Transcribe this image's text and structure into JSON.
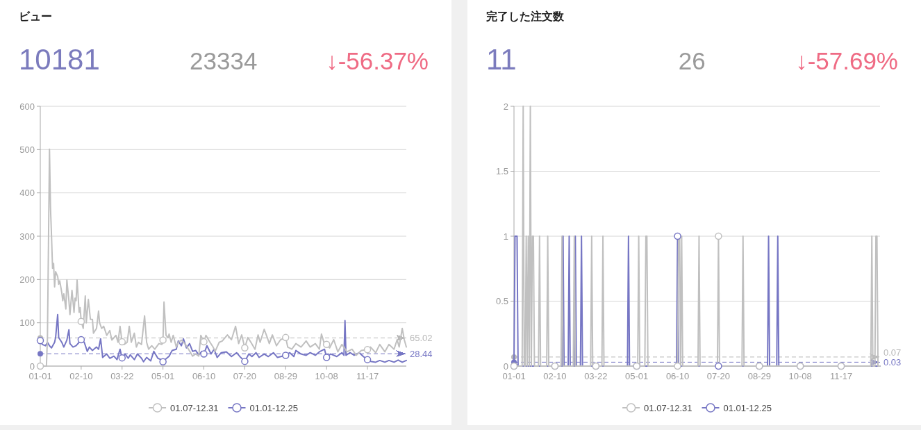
{
  "chart_data": [
    {
      "type": "line",
      "title": "ビュー",
      "annotations": [
        "10181",
        "23334",
        "↓-56.37%"
      ],
      "xlim": [
        "--01-01",
        "--12-25"
      ],
      "xticks": [
        {
          "value": "--01-01",
          "label": "01-01"
        },
        {
          "value": "--02-10",
          "label": "02-10"
        },
        {
          "value": "--03-22",
          "label": "03-22"
        },
        {
          "value": "--05-01",
          "label": "05-01"
        },
        {
          "value": "--06-10",
          "label": "06-10"
        },
        {
          "value": "--07-20",
          "label": "07-20"
        },
        {
          "value": "--08-29",
          "label": "08-29"
        },
        {
          "value": "--10-08",
          "label": "10-08"
        },
        {
          "value": "--11-17",
          "label": "11-17"
        }
      ],
      "ylim": [
        0,
        600
      ],
      "yticks": [
        0,
        100,
        200,
        300,
        400,
        500,
        600
      ],
      "grid": "y",
      "legend": "bottom",
      "line_style": "solid",
      "series": [
        {
          "name": "01.07-12.31",
          "color": "#c0c0c0",
          "x": [
            "--01-01",
            "--01-07",
            "--01-08",
            "--01-09",
            "--01-10",
            "--01-11",
            "--01-12",
            "--01-13",
            "--01-14",
            "--01-15",
            "--01-16",
            "--01-18",
            "--01-19",
            "--01-20",
            "--01-22",
            "--01-23",
            "--01-24",
            "--01-26",
            "--01-27",
            "--01-29",
            "--01-30",
            "--02-01",
            "--02-03",
            "--02-04",
            "--02-05",
            "--02-06",
            "--02-08",
            "--02-09",
            "--02-10",
            "--02-12",
            "--02-14",
            "--02-15",
            "--02-17",
            "--02-19",
            "--02-21",
            "--02-22",
            "--02-25",
            "--02-27",
            "--02-28",
            "--03-02",
            "--03-04",
            "--03-07",
            "--03-10",
            "--03-12",
            "--03-16",
            "--03-18",
            "--03-20",
            "--03-22",
            "--03-24",
            "--03-27",
            "--03-29",
            "--03-31",
            "--04-03",
            "--04-05",
            "--04-07",
            "--04-10",
            "--04-13",
            "--04-15",
            "--04-17",
            "--04-20",
            "--04-23",
            "--04-27",
            "--04-30",
            "--05-01",
            "--05-02",
            "--05-04",
            "--05-06",
            "--05-07",
            "--05-09",
            "--05-11",
            "--05-14",
            "--05-16",
            "--05-19",
            "--05-23",
            "--05-26",
            "--05-30",
            "--06-02",
            "--06-05",
            "--06-07",
            "--06-10",
            "--06-12",
            "--06-16",
            "--06-19",
            "--06-21",
            "--06-25",
            "--06-28",
            "--07-03",
            "--07-07",
            "--07-11",
            "--07-14",
            "--07-17",
            "--07-20",
            "--07-23",
            "--07-26",
            "--07-30",
            "--08-02",
            "--08-04",
            "--08-08",
            "--08-11",
            "--08-13",
            "--08-16",
            "--08-20",
            "--08-24",
            "--08-29",
            "--08-31",
            "--09-04",
            "--09-08",
            "--09-13",
            "--09-18",
            "--09-22",
            "--09-27",
            "--10-01",
            "--10-03",
            "--10-06",
            "--10-08",
            "--10-11",
            "--10-15",
            "--10-19",
            "--10-23",
            "--10-28",
            "--11-02",
            "--11-06",
            "--11-11",
            "--11-17",
            "--11-20",
            "--11-25",
            "--11-29",
            "--12-04",
            "--12-08",
            "--12-13",
            "--12-16",
            "--12-18",
            "--12-21",
            "--12-23",
            "--12-25"
          ],
          "values": [
            0,
            0,
            65,
            280,
            501,
            365,
            300,
            226,
            237,
            183,
            218,
            207,
            189,
            197,
            170,
            151,
            167,
            132,
            199,
            151,
            119,
            175,
            124,
            157,
            151,
            199,
            124,
            135,
            103,
            87,
            162,
            100,
            154,
            108,
            108,
            76,
            87,
            127,
            100,
            87,
            92,
            71,
            82,
            60,
            71,
            55,
            92,
            56,
            50,
            55,
            92,
            55,
            76,
            44,
            55,
            50,
            116,
            55,
            39,
            47,
            39,
            52,
            50,
            60,
            148,
            71,
            66,
            74,
            55,
            71,
            44,
            55,
            60,
            50,
            39,
            23,
            28,
            23,
            71,
            56,
            71,
            55,
            44,
            34,
            55,
            58,
            72,
            61,
            92,
            52,
            72,
            42,
            66,
            55,
            39,
            72,
            55,
            85,
            66,
            52,
            72,
            47,
            61,
            66,
            44,
            39,
            52,
            44,
            58,
            44,
            52,
            39,
            74,
            50,
            50,
            42,
            61,
            33,
            50,
            33,
            39,
            25,
            36,
            38,
            44,
            31,
            50,
            33,
            50,
            39,
            61,
            44,
            87,
            61,
            44
          ]
        },
        {
          "name": "01.01-12.25",
          "color": "#7676c4",
          "x": [
            "--01-01",
            "--01-03",
            "--01-06",
            "--01-08",
            "--01-10",
            "--01-12",
            "--01-15",
            "--01-16",
            "--01-18",
            "--01-19",
            "--01-22",
            "--01-24",
            "--01-27",
            "--01-29",
            "--01-30",
            "--02-02",
            "--02-05",
            "--02-08",
            "--02-10",
            "--02-13",
            "--02-16",
            "--02-18",
            "--02-21",
            "--02-25",
            "--02-27",
            "--03-01",
            "--03-03",
            "--03-07",
            "--03-10",
            "--03-14",
            "--03-17",
            "--03-20",
            "--03-22",
            "--03-25",
            "--03-28",
            "--03-30",
            "--04-03",
            "--04-06",
            "--04-10",
            "--04-12",
            "--04-15",
            "--04-19",
            "--04-22",
            "--04-26",
            "--04-29",
            "--05-01",
            "--05-03",
            "--05-07",
            "--05-10",
            "--05-14",
            "--05-16",
            "--05-19",
            "--05-21",
            "--05-24",
            "--05-27",
            "--05-30",
            "--06-02",
            "--06-05",
            "--06-08",
            "--06-10",
            "--06-13",
            "--06-17",
            "--06-20",
            "--06-23",
            "--06-27",
            "--07-02",
            "--07-07",
            "--07-12",
            "--07-16",
            "--07-20",
            "--07-24",
            "--07-27",
            "--07-31",
            "--08-03",
            "--08-08",
            "--08-12",
            "--08-17",
            "--08-21",
            "--08-29",
            "--09-02",
            "--09-06",
            "--09-08",
            "--09-13",
            "--09-18",
            "--09-22",
            "--09-27",
            "--10-01",
            "--10-06",
            "--10-08",
            "--10-12",
            "--10-18",
            "--10-23",
            "--10-25",
            "--10-26",
            "--10-27",
            "--10-31",
            "--11-04",
            "--11-09",
            "--11-13",
            "--11-17",
            "--11-20",
            "--11-25",
            "--11-29",
            "--12-04",
            "--12-08",
            "--12-13",
            "--12-17",
            "--12-21",
            "--12-25"
          ],
          "values": [
            59,
            50,
            47,
            55,
            47,
            42,
            55,
            66,
            119,
            66,
            55,
            44,
            60,
            84,
            52,
            44,
            47,
            55,
            61,
            55,
            34,
            44,
            36,
            44,
            39,
            63,
            20,
            28,
            18,
            23,
            15,
            39,
            19,
            28,
            18,
            26,
            15,
            28,
            18,
            10,
            20,
            12,
            34,
            18,
            15,
            10,
            15,
            23,
            36,
            39,
            58,
            47,
            63,
            42,
            52,
            34,
            36,
            26,
            34,
            28,
            47,
            28,
            39,
            20,
            31,
            33,
            22,
            31,
            20,
            11,
            28,
            22,
            31,
            20,
            28,
            22,
            31,
            20,
            25,
            31,
            22,
            36,
            28,
            25,
            31,
            25,
            33,
            39,
            20,
            28,
            22,
            31,
            25,
            105,
            25,
            31,
            25,
            31,
            22,
            15,
            11,
            9,
            13,
            9,
            13,
            9,
            14,
            9,
            13
          ]
        }
      ],
      "ref_lines": [
        {
          "axis": "y",
          "value": 65.02,
          "label": "65.02",
          "color": "#b8b8b8",
          "line_style": "dashed"
        },
        {
          "axis": "y",
          "value": 28.44,
          "label": "28.44",
          "color": "#7676c4",
          "line_style": "dashed"
        }
      ]
    },
    {
      "type": "line",
      "title": "完了した注文数",
      "annotations": [
        "11",
        "26",
        "↓-57.69%"
      ],
      "xlim": [
        "--01-01",
        "--12-25"
      ],
      "xticks": [
        {
          "value": "--01-01",
          "label": "01-01"
        },
        {
          "value": "--02-10",
          "label": "02-10"
        },
        {
          "value": "--03-22",
          "label": "03-22"
        },
        {
          "value": "--05-01",
          "label": "05-01"
        },
        {
          "value": "--06-10",
          "label": "06-10"
        },
        {
          "value": "--07-20",
          "label": "07-20"
        },
        {
          "value": "--08-29",
          "label": "08-29"
        },
        {
          "value": "--10-08",
          "label": "10-08"
        },
        {
          "value": "--11-17",
          "label": "11-17"
        }
      ],
      "ylim": [
        0,
        2
      ],
      "yticks": [
        0,
        0.5,
        1,
        1.5,
        2
      ],
      "grid": "y",
      "legend": "bottom",
      "line_style": "solid",
      "series": [
        {
          "name": "01.07-12.31",
          "color": "#c0c0c0",
          "x": [
            "--01-01",
            "--01-09",
            "--01-10",
            "--01-11",
            "--01-12",
            "--01-13",
            "--01-14",
            "--01-15",
            "--01-16",
            "--01-17",
            "--01-18",
            "--01-19",
            "--01-20",
            "--01-21",
            "--01-25",
            "--01-26",
            "--01-27",
            "--02-02",
            "--02-03",
            "--02-04",
            "--02-10",
            "--02-16",
            "--02-17",
            "--02-18",
            "--02-28",
            "--03-01",
            "--03-02",
            "--03-17",
            "--03-18",
            "--03-19",
            "--03-22",
            "--03-28",
            "--03-29",
            "--03-30",
            "--05-01",
            "--05-02",
            "--05-03",
            "--05-04",
            "--05-09",
            "--05-10",
            "--05-11",
            "--05-12",
            "--06-10",
            "--06-11",
            "--06-12",
            "--06-13",
            "--06-14",
            "--06-15",
            "--06-30",
            "--07-01",
            "--07-02",
            "--07-19",
            "--07-20",
            "--07-21",
            "--08-12",
            "--08-13",
            "--08-14",
            "--08-29",
            "--10-08",
            "--11-17",
            "--12-16",
            "--12-17",
            "--12-18",
            "--12-20",
            "--12-21",
            "--12-22",
            "--12-23",
            "--12-25"
          ],
          "values": [
            0,
            0,
            2,
            0,
            0,
            1,
            0,
            1,
            0,
            2,
            0,
            1,
            1,
            0,
            0,
            1,
            0,
            0,
            1,
            0,
            0,
            0,
            1,
            0,
            0,
            1,
            0,
            0,
            1,
            0,
            0,
            0,
            1,
            0,
            0,
            0,
            1,
            0,
            0,
            1,
            1,
            0,
            0,
            1,
            1,
            0,
            1,
            0,
            0,
            1,
            0,
            0,
            1,
            0,
            0,
            1,
            0,
            0,
            0,
            0,
            0,
            1,
            0,
            0,
            1,
            1,
            0,
            0
          ]
        },
        {
          "name": "01.01-12.25",
          "color": "#7676c4",
          "x": [
            "--01-01",
            "--01-02",
            "--01-03",
            "--01-04",
            "--01-05",
            "--02-10",
            "--02-17",
            "--02-18",
            "--02-19",
            "--02-23",
            "--02-24",
            "--02-25",
            "--03-01",
            "--03-02",
            "--03-03",
            "--03-07",
            "--03-08",
            "--03-09",
            "--03-22",
            "--04-22",
            "--04-23",
            "--04-24",
            "--05-01",
            "--06-09",
            "--06-10",
            "--06-11",
            "--07-20",
            "--08-29",
            "--09-06",
            "--09-07",
            "--09-08",
            "--09-15",
            "--09-16",
            "--09-17",
            "--10-08",
            "--11-17",
            "--12-25"
          ],
          "values": [
            0,
            1,
            1,
            1,
            0,
            0,
            0,
            1,
            0,
            0,
            1,
            0,
            0,
            1,
            0,
            0,
            1,
            0,
            0,
            0,
            1,
            0,
            0,
            0,
            1,
            0,
            0,
            0,
            0,
            1,
            0,
            0,
            1,
            0,
            0,
            0,
            0
          ]
        }
      ],
      "ref_lines": [
        {
          "axis": "y",
          "value": 0.07,
          "label": "0.07",
          "color": "#b8b8b8",
          "line_style": "dashed"
        },
        {
          "axis": "y",
          "value": 0.03,
          "label": "0.03",
          "color": "#7676c4",
          "line_style": "dashed"
        }
      ]
    }
  ]
}
